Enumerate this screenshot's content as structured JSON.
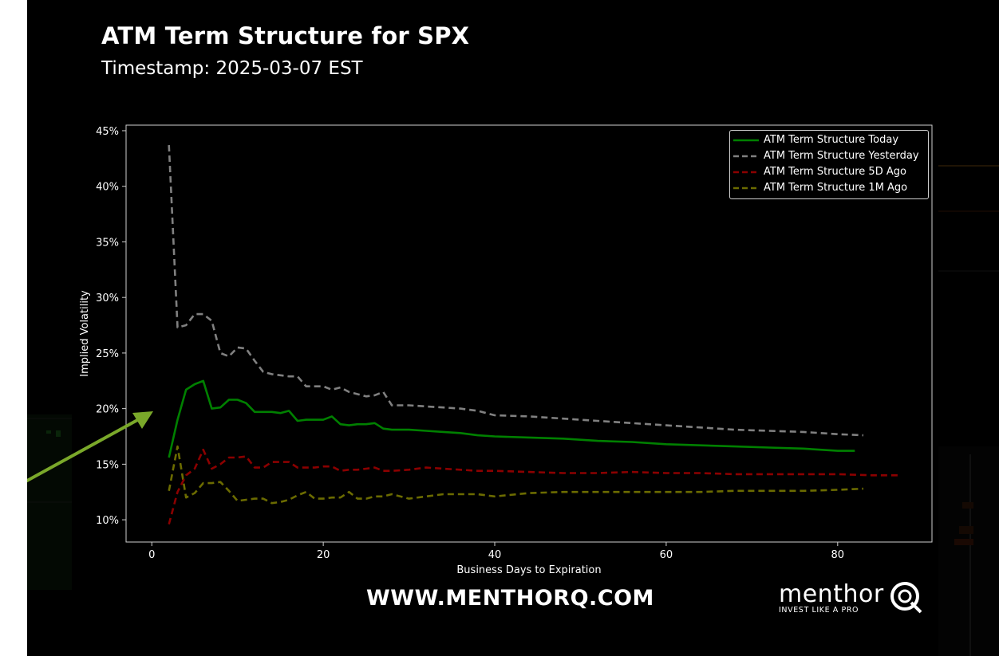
{
  "header": {
    "title": "ATM Term Structure for SPX",
    "subtitle": "Timestamp: 2025-03-07 EST"
  },
  "footer": {
    "website": "WWW.MENTHORQ.COM",
    "brand_name": "menthor",
    "brand_tagline": "INVEST LIKE A PRO"
  },
  "colors": {
    "background": "#000000",
    "today": "#008000",
    "yesterday": "#808080",
    "five_d": "#8b0000",
    "one_m": "#6b6b00",
    "arrow": "#7aa82a"
  },
  "chart_data": {
    "type": "line",
    "title": "ATM Term Structure for SPX",
    "xlabel": "Business Days to Expiration",
    "ylabel": "Implied Volatility",
    "xlim": [
      -3,
      91
    ],
    "ylim": [
      8,
      45.5
    ],
    "xticks": [
      0,
      20,
      40,
      60,
      80
    ],
    "xtick_labels": [
      "0",
      "20",
      "40",
      "60",
      "80"
    ],
    "yticks": [
      10,
      15,
      20,
      25,
      30,
      35,
      40,
      45
    ],
    "ytick_labels": [
      "10%",
      "15%",
      "20%",
      "25%",
      "30%",
      "35%",
      "40%",
      "45%"
    ],
    "grid": false,
    "legend_position": "top-right",
    "series": [
      {
        "name": "ATM Term Structure Today",
        "style": "solid",
        "color": "#008000",
        "x": [
          2,
          3,
          4,
          5,
          6,
          7,
          8,
          9,
          10,
          11,
          12,
          13,
          14,
          15,
          16,
          17,
          18,
          19,
          20,
          21,
          22,
          23,
          24,
          25,
          26,
          27,
          28,
          30,
          32,
          34,
          36,
          38,
          40,
          44,
          48,
          52,
          56,
          60,
          64,
          68,
          72,
          76,
          80,
          82
        ],
        "y": [
          15.6,
          19.0,
          21.7,
          22.2,
          22.5,
          20.0,
          20.1,
          20.8,
          20.8,
          20.5,
          19.7,
          19.7,
          19.7,
          19.6,
          19.8,
          18.9,
          19.0,
          19.0,
          19.0,
          19.3,
          18.6,
          18.5,
          18.6,
          18.6,
          18.7,
          18.2,
          18.1,
          18.1,
          18.0,
          17.9,
          17.8,
          17.6,
          17.5,
          17.4,
          17.3,
          17.1,
          17.0,
          16.8,
          16.7,
          16.6,
          16.5,
          16.4,
          16.2,
          16.2
        ]
      },
      {
        "name": "ATM Term Structure Yesterday",
        "style": "dashed",
        "color": "#808080",
        "x": [
          2,
          3,
          4,
          5,
          6,
          7,
          8,
          9,
          10,
          11,
          12,
          13,
          14,
          15,
          16,
          17,
          18,
          19,
          20,
          21,
          22,
          23,
          24,
          25,
          26,
          27,
          28,
          30,
          32,
          34,
          36,
          38,
          40,
          44,
          48,
          52,
          56,
          60,
          64,
          68,
          72,
          76,
          80,
          83
        ],
        "y": [
          43.7,
          27.3,
          27.5,
          28.5,
          28.5,
          27.9,
          25.0,
          24.7,
          25.5,
          25.4,
          24.3,
          23.3,
          23.1,
          23.0,
          22.9,
          22.9,
          22.0,
          22.0,
          22.0,
          21.7,
          21.9,
          21.5,
          21.3,
          21.1,
          21.2,
          21.5,
          20.3,
          20.3,
          20.2,
          20.1,
          20.0,
          19.8,
          19.4,
          19.3,
          19.1,
          18.9,
          18.7,
          18.5,
          18.3,
          18.1,
          18.0,
          17.9,
          17.7,
          17.6
        ]
      },
      {
        "name": "ATM Term Structure 5D Ago",
        "style": "dashed",
        "color": "#8b0000",
        "x": [
          2,
          3,
          4,
          5,
          6,
          7,
          8,
          9,
          10,
          11,
          12,
          13,
          14,
          15,
          16,
          17,
          18,
          19,
          20,
          21,
          22,
          23,
          24,
          25,
          26,
          27,
          28,
          30,
          32,
          34,
          36,
          38,
          40,
          44,
          48,
          52,
          56,
          60,
          64,
          68,
          72,
          76,
          80,
          84,
          87
        ],
        "y": [
          9.6,
          12.5,
          14.0,
          14.6,
          16.3,
          14.6,
          15.0,
          15.6,
          15.6,
          15.7,
          14.7,
          14.7,
          15.2,
          15.2,
          15.2,
          14.7,
          14.7,
          14.7,
          14.8,
          14.8,
          14.4,
          14.5,
          14.5,
          14.6,
          14.7,
          14.4,
          14.4,
          14.5,
          14.7,
          14.6,
          14.5,
          14.4,
          14.4,
          14.3,
          14.2,
          14.2,
          14.3,
          14.2,
          14.2,
          14.1,
          14.1,
          14.1,
          14.1,
          14.0,
          14.0
        ]
      },
      {
        "name": "ATM Term Structure 1M Ago",
        "style": "dashed",
        "color": "#6b6b00",
        "x": [
          2,
          3,
          4,
          5,
          6,
          7,
          8,
          9,
          10,
          11,
          12,
          13,
          14,
          15,
          16,
          17,
          18,
          19,
          20,
          21,
          22,
          23,
          24,
          25,
          26,
          27,
          28,
          30,
          32,
          34,
          36,
          38,
          40,
          44,
          48,
          52,
          56,
          60,
          64,
          68,
          72,
          76,
          80,
          83
        ],
        "y": [
          12.6,
          16.6,
          12.0,
          12.4,
          13.3,
          13.3,
          13.4,
          12.6,
          11.7,
          11.8,
          11.9,
          11.9,
          11.5,
          11.6,
          11.8,
          12.2,
          12.5,
          11.9,
          11.9,
          12.0,
          12.0,
          12.5,
          11.9,
          11.9,
          12.1,
          12.1,
          12.3,
          11.9,
          12.1,
          12.3,
          12.3,
          12.3,
          12.1,
          12.4,
          12.5,
          12.5,
          12.5,
          12.5,
          12.5,
          12.6,
          12.6,
          12.6,
          12.7,
          12.8
        ]
      }
    ]
  }
}
